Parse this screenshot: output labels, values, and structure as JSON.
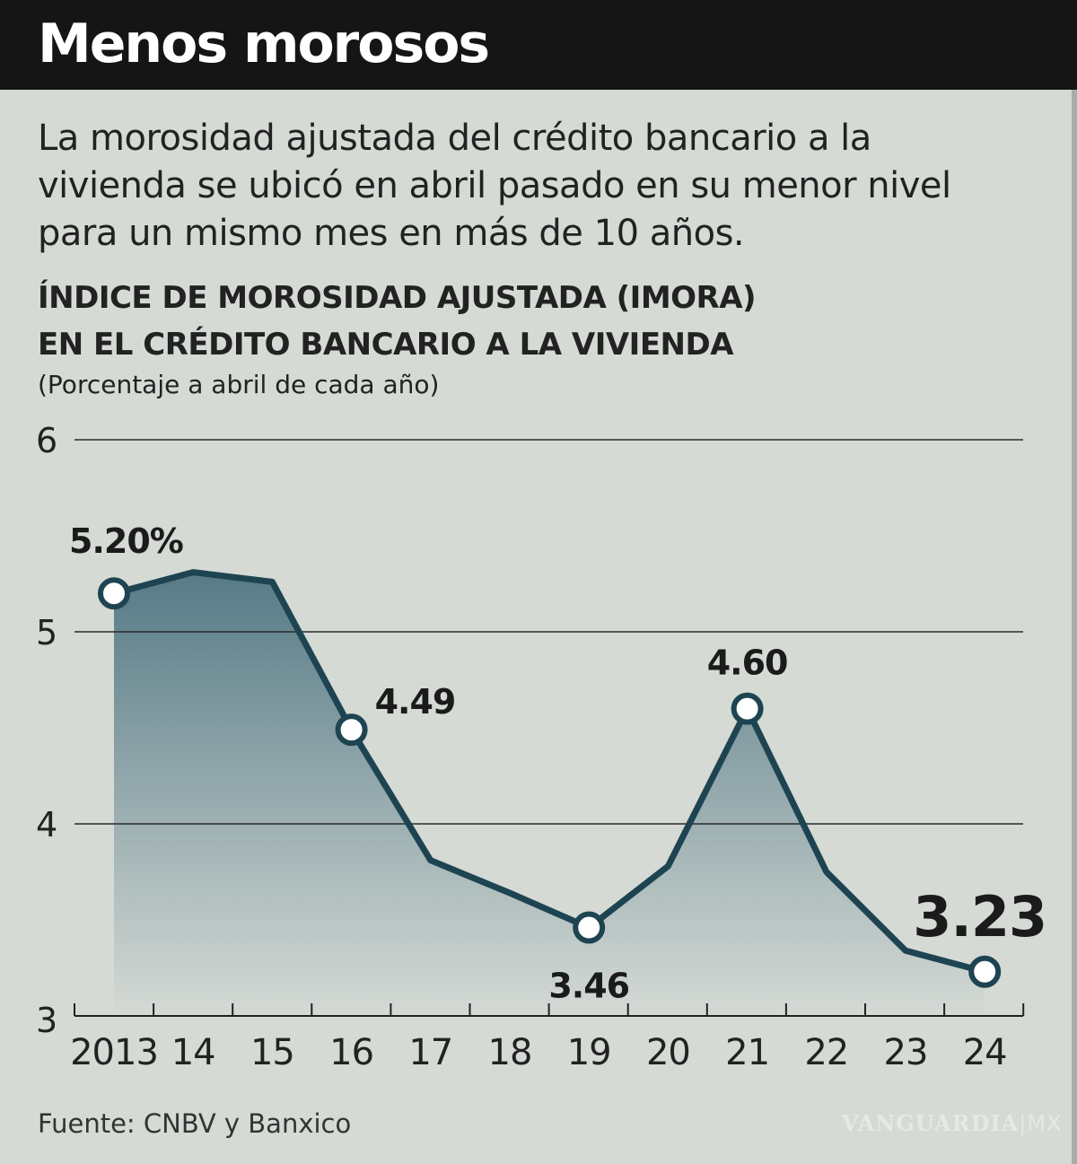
{
  "header": {
    "title": "Menos morosos"
  },
  "description": "La morosidad ajustada del crédito bancario a la vivienda se ubicó en abril pasado en su menor nivel para un mismo mes en más de 10 años.",
  "chart_data": {
    "type": "area",
    "title_line1": "ÍNDICE DE MOROSIDAD AJUSTADA (IMORA)",
    "title_line2": "EN EL CRÉDITO BANCARIO A LA VIVIENDA",
    "subtitle": "(Porcentaje a abril de cada año)",
    "categories": [
      "2013",
      "14",
      "15",
      "16",
      "17",
      "18",
      "19",
      "20",
      "21",
      "22",
      "23",
      "24"
    ],
    "values": [
      5.2,
      5.31,
      5.26,
      4.49,
      3.81,
      3.64,
      3.46,
      3.78,
      4.6,
      3.75,
      3.34,
      3.23
    ],
    "data_labels": [
      {
        "index": 0,
        "text": "5.20%"
      },
      {
        "index": 3,
        "text": "4.49"
      },
      {
        "index": 6,
        "text": "3.46"
      },
      {
        "index": 8,
        "text": "4.60"
      },
      {
        "index": 11,
        "text": "3.23"
      }
    ],
    "ylim": [
      3,
      6
    ],
    "yticks": [
      "3",
      "4",
      "5",
      "6"
    ],
    "grid": true,
    "colors": {
      "line": "#1e4452",
      "fill_top": "#567a86",
      "fill_bottom": "#d5dad5",
      "marker_fill": "#ffffff"
    }
  },
  "footer": {
    "source": "Fuente: CNBV y Banxico",
    "watermark": "VANGUARDIA|MX"
  }
}
